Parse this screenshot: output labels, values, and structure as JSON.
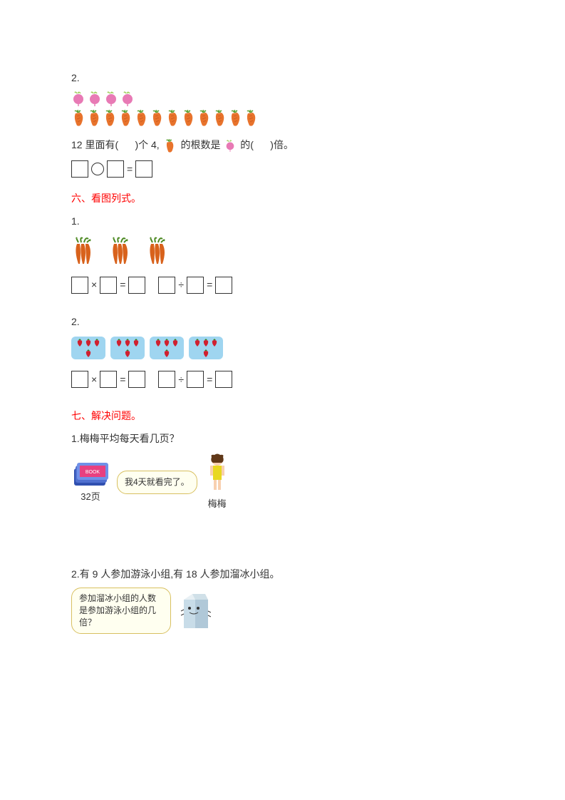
{
  "q2": {
    "number": "2.",
    "radish_count": 4,
    "carrot_count": 12,
    "sentence_parts": [
      "12 里面有(",
      ")个 4,",
      " 的根数是",
      "的(",
      ")倍。"
    ],
    "radish_color": "#e87ab5",
    "radish_leaf_color": "#a0d060",
    "carrot_color": "#e8732c",
    "carrot_leaf_color": "#5aa030"
  },
  "section6": {
    "heading": "六、看图列式。",
    "q1": {
      "number": "1.",
      "bunch_count": 3,
      "bunch_color": "#d8621c",
      "bunch_leaf": "#4a8820"
    },
    "q2": {
      "number": "2.",
      "tile_count": 4,
      "berries_per_tile": 4,
      "tile_bg": "#9fd5f0",
      "berry_color": "#d02030",
      "berry_leaf": "#3a8020"
    },
    "ops": {
      "times": "×",
      "eq": "=",
      "div": "÷"
    }
  },
  "section7": {
    "heading": "七、解决问题。",
    "q1": {
      "number": "1.",
      "question": "梅梅平均每天看几页？",
      "pages_label": "32页",
      "bubble_text": "我4天就看完了。",
      "girl_name": "梅梅",
      "book_color": "#3050b0",
      "girl_dress": "#e8d820",
      "girl_hair": "#603818"
    },
    "q2": {
      "number": "2.",
      "question": "有 9 人参加游泳小组,有 18 人参加溜冰小组。",
      "bubble_text": "参加溜冰小组的人数是参加游泳小组的几倍？",
      "milk_color": "#c8dce8"
    }
  },
  "colors": {
    "text": "#333333",
    "red": "#ff0000",
    "bubble_bg": "#fffff0",
    "bubble_border": "#d8c060"
  }
}
